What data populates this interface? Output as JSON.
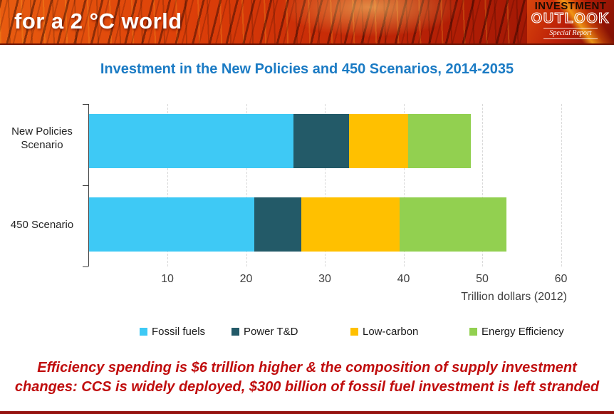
{
  "banner": {
    "title": "for a 2 °C world",
    "logo": {
      "line1": "INVESTMENT",
      "line2": "OUTLOOK",
      "tagline": "Special Report"
    }
  },
  "chart": {
    "title": "Investment in the New Policies and 450 Scenarios, 2014-2035",
    "categories": [
      "New Policies Scenario",
      "450 Scenario"
    ],
    "axis_unit_label": "Trillion dollars (2012)"
  },
  "chart_data": {
    "type": "bar",
    "orientation": "horizontal",
    "stacked": true,
    "title": "Investment in the New Policies and 450 Scenarios, 2014-2035",
    "categories": [
      "New Policies Scenario",
      "450 Scenario"
    ],
    "series": [
      {
        "name": "Fossil fuels",
        "color": "#3ec9f5",
        "values": [
          26.0,
          21.0
        ]
      },
      {
        "name": "Power T&D",
        "color": "#235a68",
        "values": [
          7.0,
          6.0
        ]
      },
      {
        "name": "Low-carbon",
        "color": "#ffc000",
        "values": [
          7.5,
          12.5
        ]
      },
      {
        "name": "Energy Efficiency",
        "color": "#92d050",
        "values": [
          8.0,
          13.5
        ]
      }
    ],
    "totals": [
      48.5,
      53.0
    ],
    "xlabel": "Trillion dollars (2012)",
    "xlim": [
      0,
      62
    ],
    "xticks": [
      10,
      20,
      30,
      40,
      50,
      60
    ],
    "gridlines": "vertical-dashed",
    "legend_position": "bottom"
  },
  "footnote": {
    "line1": "Efficiency spending is $6 trillion higher & the composition of supply investment",
    "line2": "changes: CCS is widely deployed, $300 billion of fossil fuel investment is left stranded"
  },
  "colors": {
    "title_blue": "#1b7bc4",
    "footnote_red": "#c00d0d",
    "gridline": "#d9d9d9",
    "axis_text": "#404040",
    "banner_orange": "#dd4009",
    "bottom_rule_red": "#951310"
  }
}
